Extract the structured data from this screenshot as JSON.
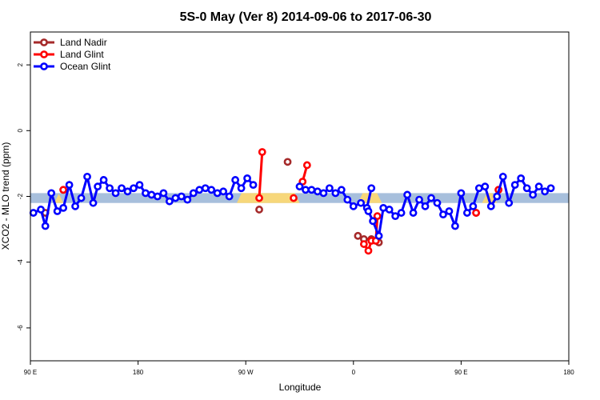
{
  "chart_data": {
    "type": "line",
    "title": "5S-0 May (Ver 8)   2014-09-06 to 2017-06-30",
    "xlabel": "Longitude",
    "ylabel": "XCO2 - MLO trend (ppm)",
    "xlim": [
      90,
      450
    ],
    "ylim": [
      -7,
      3
    ],
    "x_ticks": [
      {
        "value": 90,
        "label": "90 E"
      },
      {
        "value": 162,
        "label": "180"
      },
      {
        "value": 234,
        "label": "90 W"
      },
      {
        "value": 306,
        "label": "0"
      },
      {
        "value": 378,
        "label": "90 E"
      },
      {
        "value": 450,
        "label": "180"
      }
    ],
    "y_ticks": [
      {
        "value": 2,
        "label": "2"
      },
      {
        "value": 0,
        "label": "0"
      },
      {
        "value": -2,
        "label": "-2"
      },
      {
        "value": -4,
        "label": "-4"
      },
      {
        "value": -6,
        "label": "-6"
      }
    ],
    "grid": false,
    "legend_position": "top-left",
    "band": {
      "center": -2.05,
      "half_width": 0.15,
      "blue": "#a7bfdc",
      "yellow": "#f7d77a",
      "yellow_ranges": [
        [
          106,
          112
        ],
        [
          228,
          270
        ],
        [
          309,
          325
        ],
        [
          392,
          402
        ]
      ]
    },
    "series": [
      {
        "name": "Land Nadir",
        "color": "#a52a2a",
        "segments": [
          [
            [
              100,
              -2.5
            ]
          ],
          [
            [
              112,
              -1.8
            ]
          ],
          [
            [
              243,
              -2.4
            ]
          ],
          [
            [
              262,
              -0.95
            ]
          ],
          [
            [
              309,
              -3.2
            ],
            [
              313,
              -3.3
            ],
            [
              318,
              -3.3
            ],
            [
              323,
              -3.4
            ]
          ],
          [
            [
              388,
              -2.5
            ]
          ],
          [
            [
              403,
              -1.8
            ]
          ]
        ]
      },
      {
        "name": "Land Glint",
        "color": "#ff0000",
        "segments": [
          [
            [
              112,
              -1.8
            ]
          ],
          [
            [
              243,
              -2.05
            ],
            [
              245,
              -0.65
            ]
          ],
          [
            [
              266,
              -2.05
            ]
          ],
          [
            [
              272,
              -1.55
            ],
            [
              275,
              -1.05
            ]
          ],
          [
            [
              313,
              -3.45
            ],
            [
              316,
              -3.65
            ],
            [
              318,
              -3.35
            ],
            [
              321,
              -3.35
            ],
            [
              322,
              -2.6
            ]
          ],
          [
            [
              388,
              -2.5
            ]
          ],
          [
            [
              403,
              -1.8
            ]
          ]
        ]
      },
      {
        "name": "Ocean Glint",
        "color": "#0000ff",
        "segments": [
          [
            [
              92,
              -2.5
            ],
            [
              97,
              -2.4
            ],
            [
              100,
              -2.9
            ],
            [
              104,
              -1.9
            ],
            [
              108,
              -2.45
            ],
            [
              112,
              -2.35
            ],
            [
              116,
              -1.65
            ],
            [
              120,
              -2.3
            ],
            [
              124,
              -2.05
            ],
            [
              128,
              -1.4
            ],
            [
              132,
              -2.2
            ],
            [
              135,
              -1.7
            ],
            [
              139,
              -1.5
            ],
            [
              143,
              -1.75
            ],
            [
              147,
              -1.9
            ],
            [
              151,
              -1.75
            ],
            [
              155,
              -1.85
            ],
            [
              159,
              -1.75
            ],
            [
              163,
              -1.65
            ],
            [
              167,
              -1.9
            ],
            [
              171,
              -1.95
            ],
            [
              175,
              -2.0
            ],
            [
              179,
              -1.9
            ],
            [
              183,
              -2.15
            ],
            [
              187,
              -2.05
            ],
            [
              191,
              -2.0
            ],
            [
              195,
              -2.1
            ],
            [
              199,
              -1.9
            ],
            [
              203,
              -1.8
            ],
            [
              207,
              -1.75
            ],
            [
              211,
              -1.8
            ],
            [
              215,
              -1.9
            ],
            [
              219,
              -1.85
            ],
            [
              223,
              -2.0
            ],
            [
              227,
              -1.5
            ],
            [
              231,
              -1.75
            ],
            [
              235,
              -1.45
            ],
            [
              239,
              -1.65
            ]
          ],
          [
            [
              270,
              -1.7
            ],
            [
              274,
              -1.8
            ],
            [
              278,
              -1.8
            ],
            [
              282,
              -1.85
            ],
            [
              286,
              -1.9
            ],
            [
              290,
              -1.75
            ],
            [
              294,
              -1.9
            ],
            [
              298,
              -1.8
            ],
            [
              302,
              -2.1
            ],
            [
              306,
              -2.3
            ],
            [
              311,
              -2.2
            ],
            [
              315,
              -2.35
            ],
            [
              318,
              -1.75
            ]
          ],
          [
            [
              316,
              -2.45
            ],
            [
              319,
              -2.75
            ],
            [
              323,
              -3.2
            ],
            [
              326,
              -2.35
            ],
            [
              330,
              -2.4
            ],
            [
              334,
              -2.6
            ],
            [
              338,
              -2.5
            ],
            [
              342,
              -1.95
            ],
            [
              346,
              -2.5
            ],
            [
              350,
              -2.1
            ],
            [
              354,
              -2.3
            ],
            [
              358,
              -2.05
            ],
            [
              362,
              -2.2
            ],
            [
              366,
              -2.55
            ],
            [
              370,
              -2.45
            ],
            [
              374,
              -2.9
            ],
            [
              378,
              -1.9
            ],
            [
              382,
              -2.5
            ],
            [
              386,
              -2.3
            ],
            [
              390,
              -1.75
            ],
            [
              394,
              -1.7
            ],
            [
              398,
              -2.3
            ],
            [
              402,
              -2.0
            ],
            [
              406,
              -1.4
            ],
            [
              410,
              -2.2
            ],
            [
              414,
              -1.65
            ],
            [
              418,
              -1.45
            ],
            [
              422,
              -1.75
            ],
            [
              426,
              -1.95
            ],
            [
              430,
              -1.7
            ],
            [
              434,
              -1.85
            ],
            [
              438,
              -1.75
            ]
          ]
        ]
      }
    ]
  }
}
